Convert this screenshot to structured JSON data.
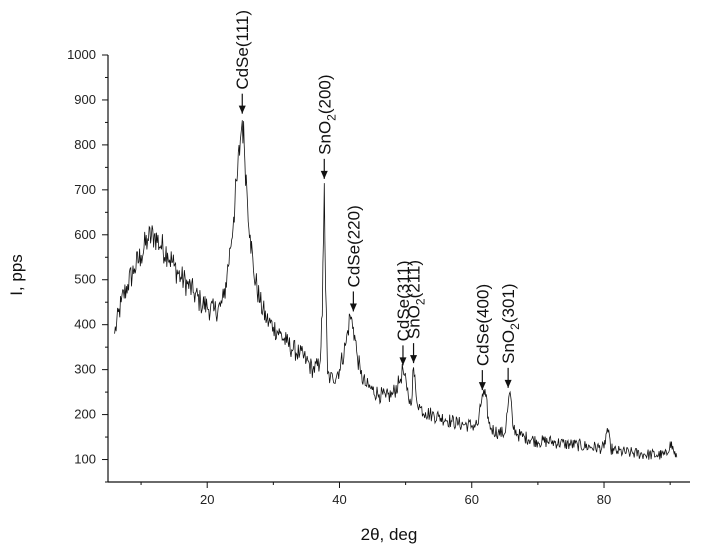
{
  "chart_data": {
    "type": "line",
    "title": "",
    "xlabel": "2θ, deg",
    "ylabel": "I, pps",
    "xlim": [
      5,
      93
    ],
    "ylim": [
      50,
      1000
    ],
    "x_ticks": [
      20,
      40,
      60,
      80
    ],
    "y_ticks": [
      100,
      200,
      300,
      400,
      500,
      600,
      700,
      800,
      900,
      1000
    ],
    "grid": false,
    "legend": "none",
    "line_color": "#111111",
    "series": [
      {
        "x": [
          6,
          7,
          8,
          9,
          10,
          11,
          12,
          13,
          14,
          15,
          16,
          17,
          18,
          19,
          20,
          21,
          22,
          22.5,
          23,
          23.5,
          24,
          24.5,
          25,
          25.3,
          25.6,
          26,
          26.5,
          27,
          28,
          29,
          30,
          31,
          32,
          33,
          34,
          35,
          36,
          37,
          37.4,
          37.7,
          37.9,
          38.2,
          38.6,
          39,
          40,
          41,
          41.6,
          42.1,
          42.6,
          43.2,
          44,
          45,
          46,
          47,
          48,
          49,
          49.6,
          50.2,
          50.8,
          51.2,
          51.6,
          52.2,
          53,
          54,
          55,
          56,
          57,
          58,
          59,
          60,
          61,
          61.6,
          62.1,
          62.6,
          63,
          64,
          65,
          65.5,
          65.8,
          66.2,
          67,
          68,
          70,
          72,
          74,
          76,
          78,
          80,
          80.5,
          81,
          81.5,
          82,
          84,
          86,
          88,
          89.5,
          90,
          90.5,
          91
        ],
        "y": [
          380,
          450,
          490,
          525,
          555,
          590,
          600,
          575,
          560,
          530,
          505,
          490,
          470,
          450,
          440,
          430,
          440,
          460,
          510,
          570,
          640,
          720,
          810,
          855,
          800,
          700,
          600,
          520,
          450,
          410,
          395,
          380,
          360,
          345,
          335,
          320,
          300,
          310,
          420,
          715,
          480,
          290,
          280,
          280,
          300,
          360,
          420,
          395,
          340,
          290,
          265,
          255,
          245,
          238,
          245,
          270,
          300,
          255,
          220,
          305,
          240,
          215,
          205,
          200,
          195,
          190,
          185,
          180,
          178,
          175,
          180,
          245,
          240,
          180,
          168,
          160,
          158,
          220,
          250,
          175,
          155,
          150,
          140,
          140,
          135,
          132,
          128,
          125,
          170,
          125,
          120,
          118,
          115,
          112,
          110,
          110,
          140,
          120,
          105
        ]
      }
    ],
    "annotations": [
      {
        "label": "CdSe(111)",
        "main": "CdSe(111)",
        "sub": "",
        "rest": "",
        "x": 25.3,
        "y": 865
      },
      {
        "label": "SnO2(200)",
        "main": "SnO",
        "sub": "2",
        "rest": "(200)",
        "x": 37.7,
        "y": 720
      },
      {
        "label": "CdSe(220)",
        "main": "CdSe(220)",
        "sub": "",
        "rest": "",
        "x": 42.1,
        "y": 425
      },
      {
        "label": "CdSe(311)",
        "main": "CdSe(311)",
        "sub": "",
        "rest": "",
        "x": 49.6,
        "y": 305
      },
      {
        "label": "SnO2(211)",
        "main": "SnO",
        "sub": "2",
        "rest": "(211)",
        "x": 51.2,
        "y": 310
      },
      {
        "label": "CdSe(400)",
        "main": "CdSe(400)",
        "sub": "",
        "rest": "",
        "x": 61.6,
        "y": 250
      },
      {
        "label": "SnO2(301)",
        "main": "SnO",
        "sub": "2",
        "rest": "(301)",
        "x": 65.5,
        "y": 255
      }
    ]
  }
}
